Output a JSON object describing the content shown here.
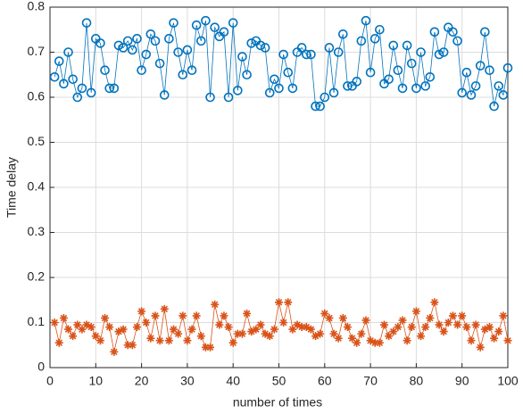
{
  "chart_data": {
    "type": "line",
    "xlabel": "number of times",
    "ylabel": "Time delay",
    "x": [
      1,
      2,
      3,
      4,
      5,
      6,
      7,
      8,
      9,
      10,
      11,
      12,
      13,
      14,
      15,
      16,
      17,
      18,
      19,
      20,
      21,
      22,
      23,
      24,
      25,
      26,
      27,
      28,
      29,
      30,
      31,
      32,
      33,
      34,
      35,
      36,
      37,
      38,
      39,
      40,
      41,
      42,
      43,
      44,
      45,
      46,
      47,
      48,
      49,
      50,
      51,
      52,
      53,
      54,
      55,
      56,
      57,
      58,
      59,
      60,
      61,
      62,
      63,
      64,
      65,
      66,
      67,
      68,
      69,
      70,
      71,
      72,
      73,
      74,
      75,
      76,
      77,
      78,
      79,
      80,
      81,
      82,
      83,
      84,
      85,
      86,
      87,
      88,
      89,
      90,
      91,
      92,
      93,
      94,
      95,
      96,
      97,
      98,
      99,
      100
    ],
    "series": [
      {
        "color": "#0072BD",
        "marker": "o",
        "values": [
          0.645,
          0.68,
          0.63,
          0.7,
          0.64,
          0.6,
          0.62,
          0.765,
          0.61,
          0.73,
          0.72,
          0.66,
          0.62,
          0.62,
          0.715,
          0.71,
          0.725,
          0.705,
          0.73,
          0.66,
          0.695,
          0.74,
          0.725,
          0.675,
          0.605,
          0.73,
          0.765,
          0.7,
          0.65,
          0.705,
          0.66,
          0.76,
          0.725,
          0.77,
          0.6,
          0.755,
          0.735,
          0.745,
          0.6,
          0.765,
          0.615,
          0.69,
          0.65,
          0.72,
          0.725,
          0.715,
          0.71,
          0.61,
          0.64,
          0.62,
          0.695,
          0.655,
          0.62,
          0.7,
          0.71,
          0.695,
          0.695,
          0.58,
          0.58,
          0.6,
          0.71,
          0.61,
          0.7,
          0.74,
          0.625,
          0.625,
          0.635,
          0.725,
          0.77,
          0.655,
          0.73,
          0.75,
          0.63,
          0.64,
          0.715,
          0.66,
          0.62,
          0.715,
          0.675,
          0.62,
          0.7,
          0.625,
          0.645,
          0.745,
          0.695,
          0.7,
          0.755,
          0.745,
          0.725,
          0.61,
          0.655,
          0.605,
          0.625,
          0.67,
          0.745,
          0.66,
          0.58,
          0.625,
          0.605,
          0.665
        ]
      },
      {
        "color": "#D95319",
        "marker": "*",
        "values": [
          0.1,
          0.055,
          0.11,
          0.085,
          0.07,
          0.095,
          0.085,
          0.095,
          0.09,
          0.07,
          0.06,
          0.11,
          0.09,
          0.035,
          0.08,
          0.085,
          0.05,
          0.05,
          0.09,
          0.125,
          0.1,
          0.065,
          0.115,
          0.06,
          0.13,
          0.06,
          0.085,
          0.075,
          0.115,
          0.06,
          0.085,
          0.115,
          0.07,
          0.045,
          0.045,
          0.14,
          0.095,
          0.115,
          0.09,
          0.055,
          0.075,
          0.075,
          0.12,
          0.08,
          0.085,
          0.095,
          0.075,
          0.07,
          0.085,
          0.145,
          0.1,
          0.145,
          0.085,
          0.095,
          0.09,
          0.09,
          0.085,
          0.07,
          0.075,
          0.12,
          0.11,
          0.075,
          0.065,
          0.11,
          0.09,
          0.065,
          0.055,
          0.075,
          0.105,
          0.06,
          0.055,
          0.055,
          0.095,
          0.07,
          0.08,
          0.09,
          0.105,
          0.06,
          0.09,
          0.125,
          0.07,
          0.09,
          0.11,
          0.145,
          0.095,
          0.08,
          0.1,
          0.115,
          0.095,
          0.115,
          0.09,
          0.06,
          0.095,
          0.045,
          0.085,
          0.09,
          0.065,
          0.08,
          0.115,
          0.06
        ]
      }
    ],
    "xlim": [
      0,
      100
    ],
    "xticks": [
      0,
      10,
      20,
      30,
      40,
      50,
      60,
      70,
      80,
      90,
      100
    ],
    "ylim": [
      0,
      0.8
    ],
    "yticks": [
      0,
      0.1,
      0.2,
      0.3,
      0.4,
      0.5,
      0.6,
      0.7,
      0.8
    ],
    "grid": true
  }
}
